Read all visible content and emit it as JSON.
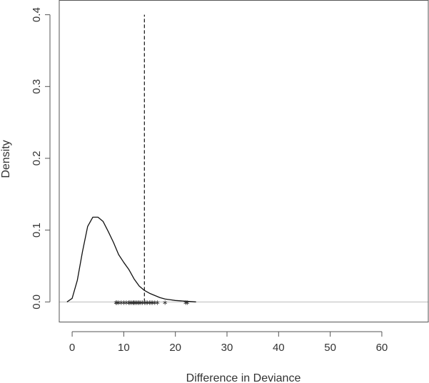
{
  "chart_data": {
    "type": "line",
    "title": "",
    "xlabel": "Difference in Deviance",
    "ylabel": "Density",
    "xlim": [
      -2.5,
      69
    ],
    "ylim": [
      -0.028,
      0.42
    ],
    "x_ticks": [
      0,
      10,
      20,
      30,
      40,
      50,
      60
    ],
    "x_tick_labels": [
      "0",
      "10",
      "20",
      "30",
      "40",
      "50",
      "60"
    ],
    "y_ticks": [
      0.0,
      0.1,
      0.2,
      0.3,
      0.4
    ],
    "y_tick_labels": [
      "0.0",
      "0.1",
      "0.2",
      "0.3",
      "0.4"
    ],
    "grid": false,
    "legend": "none",
    "colors": {
      "curve": "#111111",
      "baseline": "#bbbbbb",
      "reference": "#111111",
      "points": "#222222",
      "axis": "#555555"
    },
    "density_curve": {
      "x": [
        -1,
        0,
        1,
        2,
        3,
        4,
        5,
        6,
        7,
        8,
        9,
        10,
        11,
        12,
        13,
        14,
        15,
        16,
        17,
        18,
        19,
        20,
        21,
        22,
        23,
        24
      ],
      "y": [
        0.0,
        0.005,
        0.03,
        0.07,
        0.105,
        0.118,
        0.118,
        0.112,
        0.098,
        0.083,
        0.066,
        0.055,
        0.045,
        0.032,
        0.022,
        0.016,
        0.012,
        0.009,
        0.006,
        0.004,
        0.003,
        0.002,
        0.0015,
        0.001,
        0.0005,
        0.0
      ]
    },
    "baseline_y": 0.0,
    "reference_line": {
      "x": 14,
      "y_range": [
        0.0,
        0.4
      ],
      "style": "dashed"
    },
    "rug_points_x": [
      8.5,
      8.7,
      9.0,
      9.5,
      10.0,
      10.5,
      11.0,
      11.2,
      11.5,
      11.8,
      12.0,
      12.2,
      12.5,
      12.8,
      13.0,
      13.3,
      13.6,
      14.0,
      14.3,
      14.6,
      15.0,
      15.3,
      15.6,
      16.0,
      16.5,
      18.0,
      22.0,
      22.3
    ]
  }
}
